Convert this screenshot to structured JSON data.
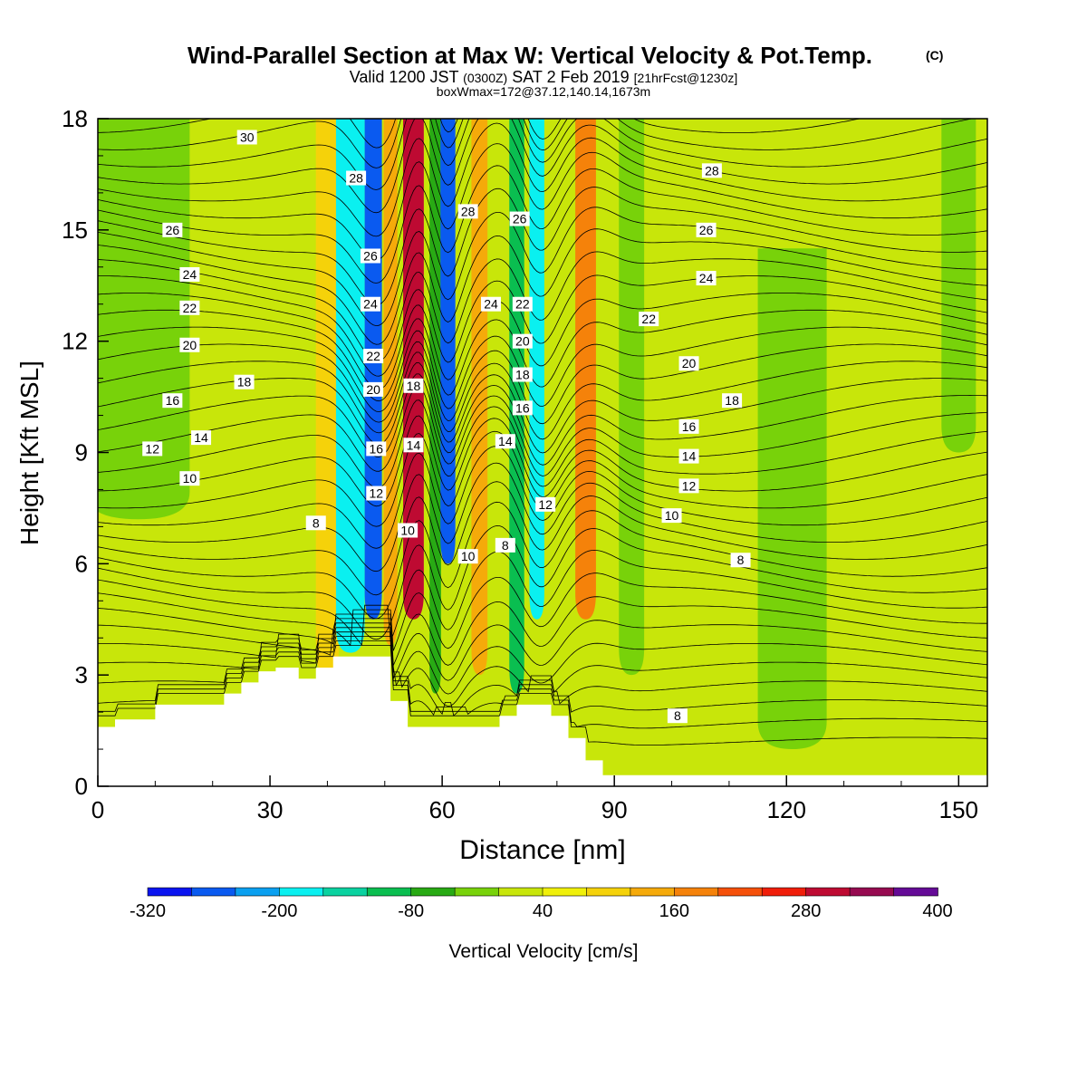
{
  "title": {
    "main": "Wind-Parallel Section at Max W: Vertical Velocity & Pot.Temp.",
    "main_mark": "(C)",
    "valid_prefix": "Valid 1200 JST",
    "valid_utc": "(0300Z)",
    "valid_date": "SAT 2 Feb 2019",
    "valid_fcst": "[21hrFcst@1230z]",
    "boxwmax": "boxWmax=172@37.12,140.14,1673m"
  },
  "chart_data": {
    "type": "heatmap",
    "xlabel": "Distance [nm]",
    "ylabel": "Height [Kft MSL]",
    "xlim": [
      0,
      155
    ],
    "ylim": [
      0,
      18
    ],
    "x_ticks": [
      0,
      30,
      60,
      90,
      120,
      150
    ],
    "y_ticks": [
      0,
      3,
      6,
      9,
      12,
      15,
      18
    ],
    "colorbar": {
      "label": "Vertical Velocity [cm/s]",
      "levels": [
        -320,
        -280,
        -240,
        -200,
        -160,
        -120,
        -80,
        -40,
        0,
        40,
        80,
        120,
        160,
        200,
        240,
        280,
        320,
        360,
        400
      ],
      "labels": [
        "-320",
        "-200",
        "-80",
        "40",
        "160",
        "280",
        "400"
      ],
      "colors": [
        "#0a14f0",
        "#0a5af0",
        "#0aa0f0",
        "#0af0f0",
        "#0ad2a0",
        "#0abe50",
        "#28aa14",
        "#78d20a",
        "#c8e60a",
        "#f0f00a",
        "#f5d20a",
        "#f5aa0a",
        "#f5820a",
        "#f5500a",
        "#f01e0a",
        "#be0a32",
        "#960a50",
        "#640a96"
      ]
    },
    "w_field": {
      "background_value": 20,
      "columns": [
        {
          "x": 1,
          "w": 7,
          "value": -60,
          "ytop": 18,
          "ybot": 11.6
        },
        {
          "x": 7,
          "w": 9,
          "value": -40,
          "ytop": 18,
          "ybot": 7.2
        },
        {
          "x": 40,
          "w": 2,
          "value": 80,
          "ytop": 18,
          "ybot": 3
        },
        {
          "x": 44,
          "w": 2.5,
          "value": -180,
          "ytop": 18,
          "ybot": 3.6
        },
        {
          "x": 48,
          "w": 1.5,
          "value": -280,
          "ytop": 18,
          "ybot": 4.5
        },
        {
          "x": 51,
          "w": 1.2,
          "value": 120,
          "ytop": 18,
          "ybot": 3.8
        },
        {
          "x": 55,
          "w": 1.8,
          "value": 300,
          "ytop": 18,
          "ybot": 4.5
        },
        {
          "x": 58.8,
          "w": 1,
          "value": -60,
          "ytop": 18,
          "ybot": 2.5
        },
        {
          "x": 61,
          "w": 1.3,
          "value": -260,
          "ytop": 18,
          "ybot": 6
        },
        {
          "x": 66.5,
          "w": 1.4,
          "value": 120,
          "ytop": 18,
          "ybot": 3
        },
        {
          "x": 73,
          "w": 1.3,
          "value": -120,
          "ytop": 18,
          "ybot": 2.5
        },
        {
          "x": 76.5,
          "w": 1.3,
          "value": -200,
          "ytop": 18,
          "ybot": 4.5
        },
        {
          "x": 85,
          "w": 1.8,
          "value": 180,
          "ytop": 18,
          "ybot": 4.5
        },
        {
          "x": 93,
          "w": 2.2,
          "value": -40,
          "ytop": 18,
          "ybot": 3
        },
        {
          "x": 121,
          "w": 6,
          "value": -20,
          "ytop": 14.5,
          "ybot": 1
        },
        {
          "x": 150,
          "w": 3,
          "value": -40,
          "ytop": 18,
          "ybot": 9
        }
      ]
    },
    "terrain": {
      "x": [
        0,
        3,
        3,
        10,
        10,
        22,
        22,
        25,
        25,
        28,
        28,
        31,
        31,
        35,
        35,
        38,
        38,
        41,
        41,
        44,
        44,
        51,
        51,
        54,
        54,
        70,
        70,
        73,
        73,
        79,
        79,
        82,
        82,
        85,
        85,
        88,
        88,
        155
      ],
      "y": [
        1.6,
        1.6,
        1.8,
        1.8,
        2.2,
        2.2,
        2.5,
        2.5,
        2.8,
        2.8,
        3.1,
        3.1,
        3.2,
        3.2,
        2.9,
        2.9,
        3.2,
        3.2,
        3.5,
        3.5,
        3.5,
        3.5,
        2.3,
        2.3,
        1.6,
        1.6,
        1.9,
        1.9,
        2.2,
        2.2,
        1.9,
        1.9,
        1.3,
        1.3,
        0.7,
        0.7,
        0.3,
        0.3
      ]
    },
    "theta_levels": [
      8,
      10,
      12,
      14,
      16,
      18,
      20,
      22,
      24,
      26,
      28,
      30
    ],
    "theta_labels": [
      {
        "text": "30",
        "x": 26,
        "y": 17.5
      },
      {
        "text": "28",
        "x": 45,
        "y": 16.4
      },
      {
        "text": "28",
        "x": 64.5,
        "y": 15.5
      },
      {
        "text": "26",
        "x": 73.5,
        "y": 15.3
      },
      {
        "text": "28",
        "x": 107,
        "y": 16.6
      },
      {
        "text": "26",
        "x": 13,
        "y": 15
      },
      {
        "text": "26",
        "x": 47.5,
        "y": 14.3
      },
      {
        "text": "26",
        "x": 106,
        "y": 15
      },
      {
        "text": "24",
        "x": 16,
        "y": 13.8
      },
      {
        "text": "24",
        "x": 47.5,
        "y": 13
      },
      {
        "text": "24",
        "x": 68.5,
        "y": 13
      },
      {
        "text": "22",
        "x": 74,
        "y": 13
      },
      {
        "text": "24",
        "x": 106,
        "y": 13.7
      },
      {
        "text": "22",
        "x": 16,
        "y": 12.9
      },
      {
        "text": "22",
        "x": 48,
        "y": 11.6
      },
      {
        "text": "22",
        "x": 96,
        "y": 12.6
      },
      {
        "text": "20",
        "x": 16,
        "y": 11.9
      },
      {
        "text": "20",
        "x": 74,
        "y": 12
      },
      {
        "text": "20",
        "x": 103,
        "y": 11.4
      },
      {
        "text": "18",
        "x": 25.5,
        "y": 10.9
      },
      {
        "text": "20",
        "x": 48,
        "y": 10.7
      },
      {
        "text": "18",
        "x": 55,
        "y": 10.8
      },
      {
        "text": "18",
        "x": 74,
        "y": 11.1
      },
      {
        "text": "18",
        "x": 110.5,
        "y": 10.4
      },
      {
        "text": "16",
        "x": 13,
        "y": 10.4
      },
      {
        "text": "16",
        "x": 74,
        "y": 10.2
      },
      {
        "text": "16",
        "x": 103,
        "y": 9.7
      },
      {
        "text": "14",
        "x": 18,
        "y": 9.4
      },
      {
        "text": "14",
        "x": 55,
        "y": 9.2
      },
      {
        "text": "14",
        "x": 71,
        "y": 9.3
      },
      {
        "text": "14",
        "x": 103,
        "y": 8.9
      },
      {
        "text": "12",
        "x": 9.5,
        "y": 9.1
      },
      {
        "text": "16",
        "x": 48.5,
        "y": 9.1
      },
      {
        "text": "12",
        "x": 103,
        "y": 8.1
      },
      {
        "text": "10",
        "x": 16,
        "y": 8.3
      },
      {
        "text": "12",
        "x": 48.5,
        "y": 7.9
      },
      {
        "text": "12",
        "x": 78,
        "y": 7.6
      },
      {
        "text": "10",
        "x": 100,
        "y": 7.3
      },
      {
        "text": "8",
        "x": 38,
        "y": 7.1
      },
      {
        "text": "10",
        "x": 54,
        "y": 6.9
      },
      {
        "text": "10",
        "x": 64.5,
        "y": 6.2
      },
      {
        "text": "8",
        "x": 71,
        "y": 6.5
      },
      {
        "text": "8",
        "x": 112,
        "y": 6.1
      },
      {
        "text": "8",
        "x": 101,
        "y": 1.9
      }
    ]
  }
}
